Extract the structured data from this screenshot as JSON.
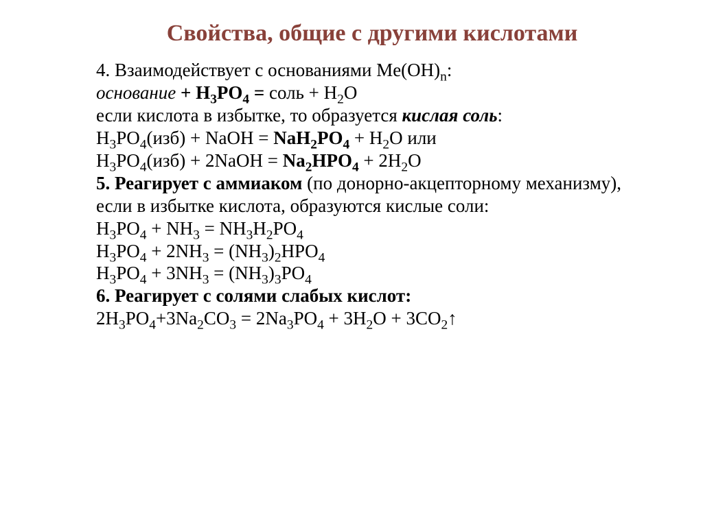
{
  "colors": {
    "title": "#89413a",
    "body": "#000000",
    "background": "#ffffff"
  },
  "fontsizes": {
    "title": 34,
    "body": 27
  },
  "lineheight": {
    "body": 1.22
  },
  "title": "Свойства, общие с другими кислотами",
  "lines": {
    "l1a": "4. Взаимодействует с основаниями Me(OH)",
    "l1b": ":",
    "l2a": "основание",
    "l2b": "  +  H",
    "l2c": "PO",
    "l2d": "  =  ",
    "l2e": "соль + H",
    "l2f": "O",
    "l3a": "если кислота в избытке, то образуется ",
    "l3b": "кислая соль",
    "l3c": ":",
    "l4a": "H",
    "l4b": "PO",
    "l4c": "(изб) + NaOH = ",
    "l4d": "NaH",
    "l4e": "PO",
    "l4f": " + H",
    "l4g": "O или",
    "l5a": "H",
    "l5b": "PO",
    "l5c": "(изб) + 2NaOH = ",
    "l5d": "Na",
    "l5e": "HPO",
    "l5f": " + 2H",
    "l5g": "O",
    "l6a": "5. Реагирует с аммиаком ",
    "l6b": "(по донорно-акцепторному механизму), если в избытке кислота, образуются кислые соли:",
    "l7a": "H",
    "l7b": "PO",
    "l7c": " + NH",
    "l7d": " = NH",
    "l7e": "H",
    "l7f": "PO",
    "l8a": "H",
    "l8b": "PO",
    "l8c": " + 2NH",
    "l8d": " = (NH",
    "l8e": ")",
    "l8f": "HPO",
    "l9a": "H",
    "l9b": "PO",
    "l9c": " + 3NH",
    "l9d": " = (NH",
    "l9e": ")",
    "l9f": "PO",
    "l10": "6. Реагирует с солями слабых кислот:",
    "l11a": "2H",
    "l11b": "PO",
    "l11c": "+3Na",
    "l11d": "CO",
    "l11e": " = 2Na",
    "l11f": "PO",
    "l11g": " + 3H",
    "l11h": "O + 3CO",
    "l11i": "↑"
  },
  "sub": {
    "n": "n",
    "s2": "2",
    "s3": "3",
    "s4": "4"
  }
}
